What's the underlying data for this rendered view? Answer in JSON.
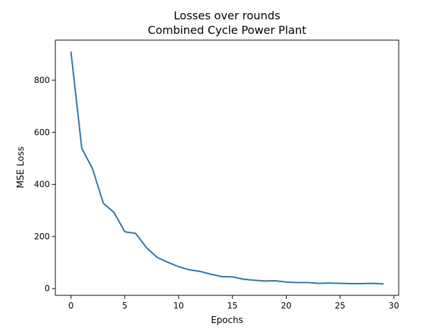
{
  "chart_data": {
    "type": "line",
    "title": "Losses over rounds",
    "subtitle": "Combined Cycle Power Plant",
    "xlabel": "Epochs",
    "ylabel": "MSE Loss",
    "xlim": [
      -1.45,
      30.45
    ],
    "ylim": [
      -26,
      954
    ],
    "x_ticks": [
      0,
      5,
      10,
      15,
      20,
      25,
      30
    ],
    "y_ticks": [
      0,
      200,
      400,
      600,
      800
    ],
    "grid": false,
    "legend": "none",
    "series": [
      {
        "color": "#1f77b4",
        "x": [
          0,
          1,
          2,
          3,
          4,
          5,
          6,
          7,
          8,
          9,
          10,
          11,
          12,
          13,
          14,
          15,
          16,
          17,
          18,
          19,
          20,
          21,
          22,
          23,
          24,
          25,
          26,
          27,
          28,
          29
        ],
        "values": [
          908,
          539,
          460,
          328,
          292,
          218,
          212,
          158,
          120,
          101,
          84,
          72,
          66,
          55,
          46,
          45,
          36,
          32,
          29,
          30,
          25,
          23,
          23,
          20,
          21,
          20,
          19,
          19,
          20,
          18
        ]
      }
    ]
  }
}
